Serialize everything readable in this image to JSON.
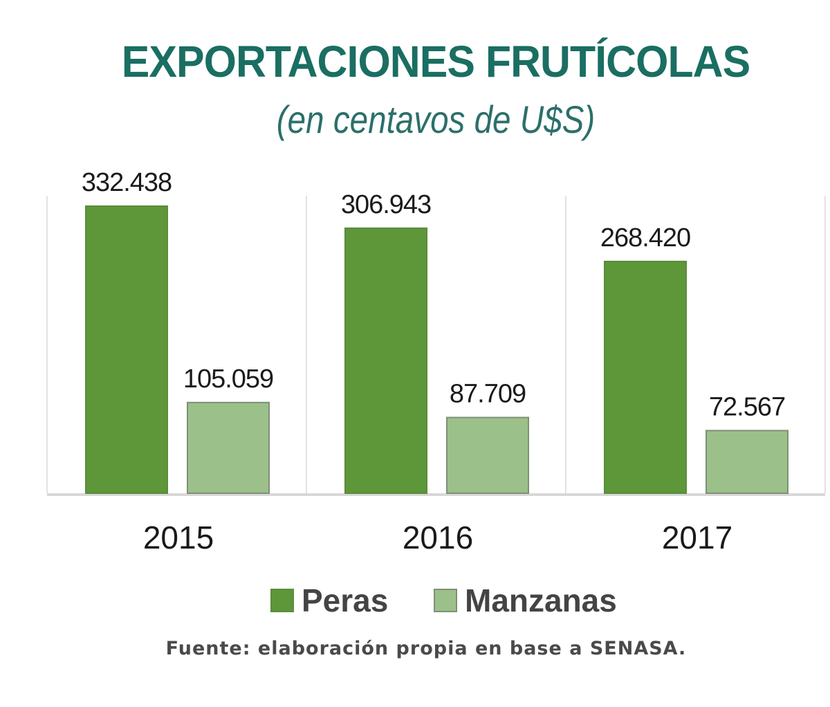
{
  "chart_data": {
    "type": "bar",
    "title": "EXPORTACIONES FRUTÍCOLAS",
    "subtitle": "(en centavos de U$S)",
    "categories": [
      "2015",
      "2016",
      "2017"
    ],
    "series": [
      {
        "name": "Peras",
        "values": [
          332438,
          306943,
          268420
        ],
        "labels": [
          "332.438",
          "306.943",
          "268.420"
        ],
        "color": "#5e963a"
      },
      {
        "name": "Manzanas",
        "values": [
          105059,
          87709,
          72567
        ],
        "labels": [
          "105.059",
          "87.709",
          "72.567"
        ],
        "color": "#9cc08a"
      }
    ],
    "ylim": [
      0,
      332438
    ],
    "grid": false,
    "legend": "bottom",
    "source": "Fuente: elaboración propia en base a SENASA."
  }
}
